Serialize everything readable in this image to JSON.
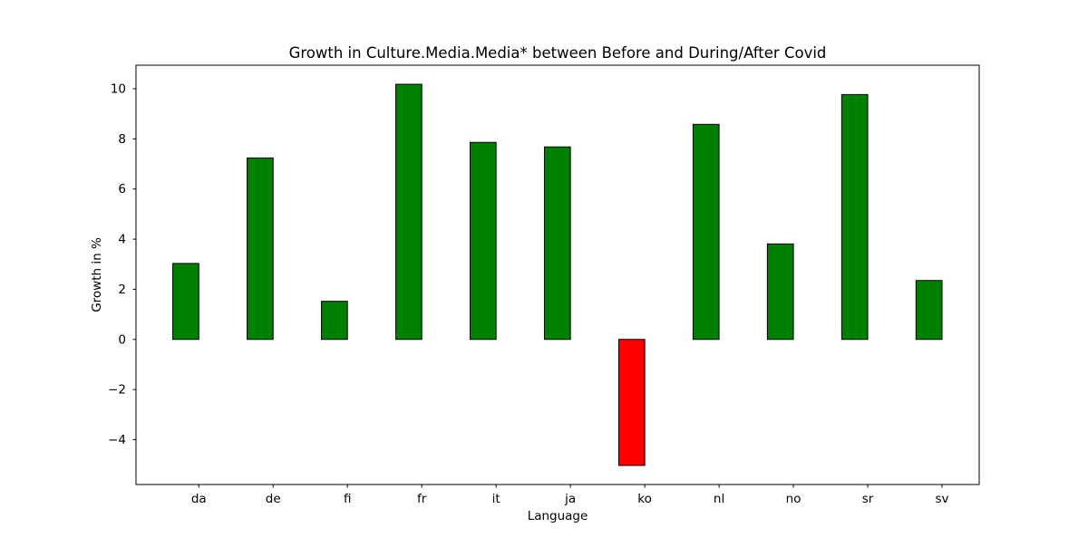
{
  "chart_data": {
    "type": "bar",
    "title": "Growth in Culture.Media.Media* between Before and During/After Covid",
    "xlabel": "Language",
    "ylabel": "Growth in %",
    "categories": [
      "da",
      "de",
      "fi",
      "fr",
      "it",
      "ja",
      "ko",
      "nl",
      "no",
      "sr",
      "sv"
    ],
    "values": [
      3.03,
      7.24,
      1.52,
      10.18,
      7.86,
      7.68,
      -5.03,
      8.58,
      3.81,
      9.77,
      2.35
    ],
    "ylim": [
      -5.79,
      10.94
    ],
    "yticks": [
      -4,
      -2,
      0,
      2,
      4,
      6,
      8,
      10
    ],
    "ytick_labels": [
      "−4",
      "−2",
      "0",
      "2",
      "4",
      "6",
      "8",
      "10"
    ],
    "grid": false,
    "colors": {
      "positive": "#008000",
      "negative": "#ff0000",
      "edge": "#000000"
    }
  }
}
